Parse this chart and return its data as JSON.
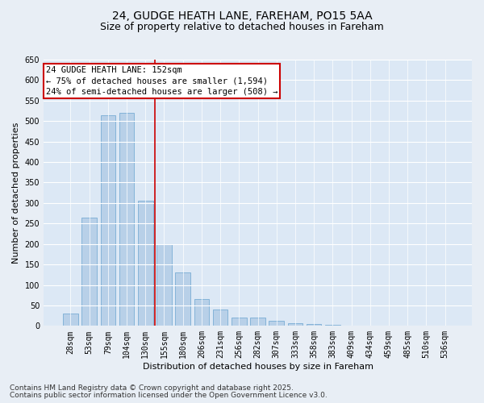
{
  "title": "24, GUDGE HEATH LANE, FAREHAM, PO15 5AA",
  "subtitle": "Size of property relative to detached houses in Fareham",
  "xlabel": "Distribution of detached houses by size in Fareham",
  "ylabel": "Number of detached properties",
  "categories": [
    "28sqm",
    "53sqm",
    "79sqm",
    "104sqm",
    "130sqm",
    "155sqm",
    "180sqm",
    "206sqm",
    "231sqm",
    "256sqm",
    "282sqm",
    "307sqm",
    "333sqm",
    "358sqm",
    "383sqm",
    "409sqm",
    "434sqm",
    "459sqm",
    "485sqm",
    "510sqm",
    "536sqm"
  ],
  "values": [
    30,
    265,
    515,
    520,
    305,
    200,
    130,
    65,
    40,
    20,
    20,
    13,
    6,
    5,
    2,
    1,
    1,
    1,
    0,
    0,
    0
  ],
  "bar_color": "#b8d0e8",
  "bar_edge_color": "#7aadd4",
  "vline_x": 4.5,
  "vline_color": "#cc0000",
  "annotation_text": "24 GUDGE HEATH LANE: 152sqm\n← 75% of detached houses are smaller (1,594)\n24% of semi-detached houses are larger (508) →",
  "annotation_box_facecolor": "#ffffff",
  "annotation_box_edgecolor": "#cc0000",
  "ylim": [
    0,
    650
  ],
  "yticks": [
    0,
    50,
    100,
    150,
    200,
    250,
    300,
    350,
    400,
    450,
    500,
    550,
    600,
    650
  ],
  "bg_color": "#e8eef5",
  "plot_bg_color": "#dce8f5",
  "footer_line1": "Contains HM Land Registry data © Crown copyright and database right 2025.",
  "footer_line2": "Contains public sector information licensed under the Open Government Licence v3.0.",
  "title_fontsize": 10,
  "subtitle_fontsize": 9,
  "xlabel_fontsize": 8,
  "ylabel_fontsize": 8,
  "tick_fontsize": 7,
  "annotation_fontsize": 7.5,
  "footer_fontsize": 6.5
}
